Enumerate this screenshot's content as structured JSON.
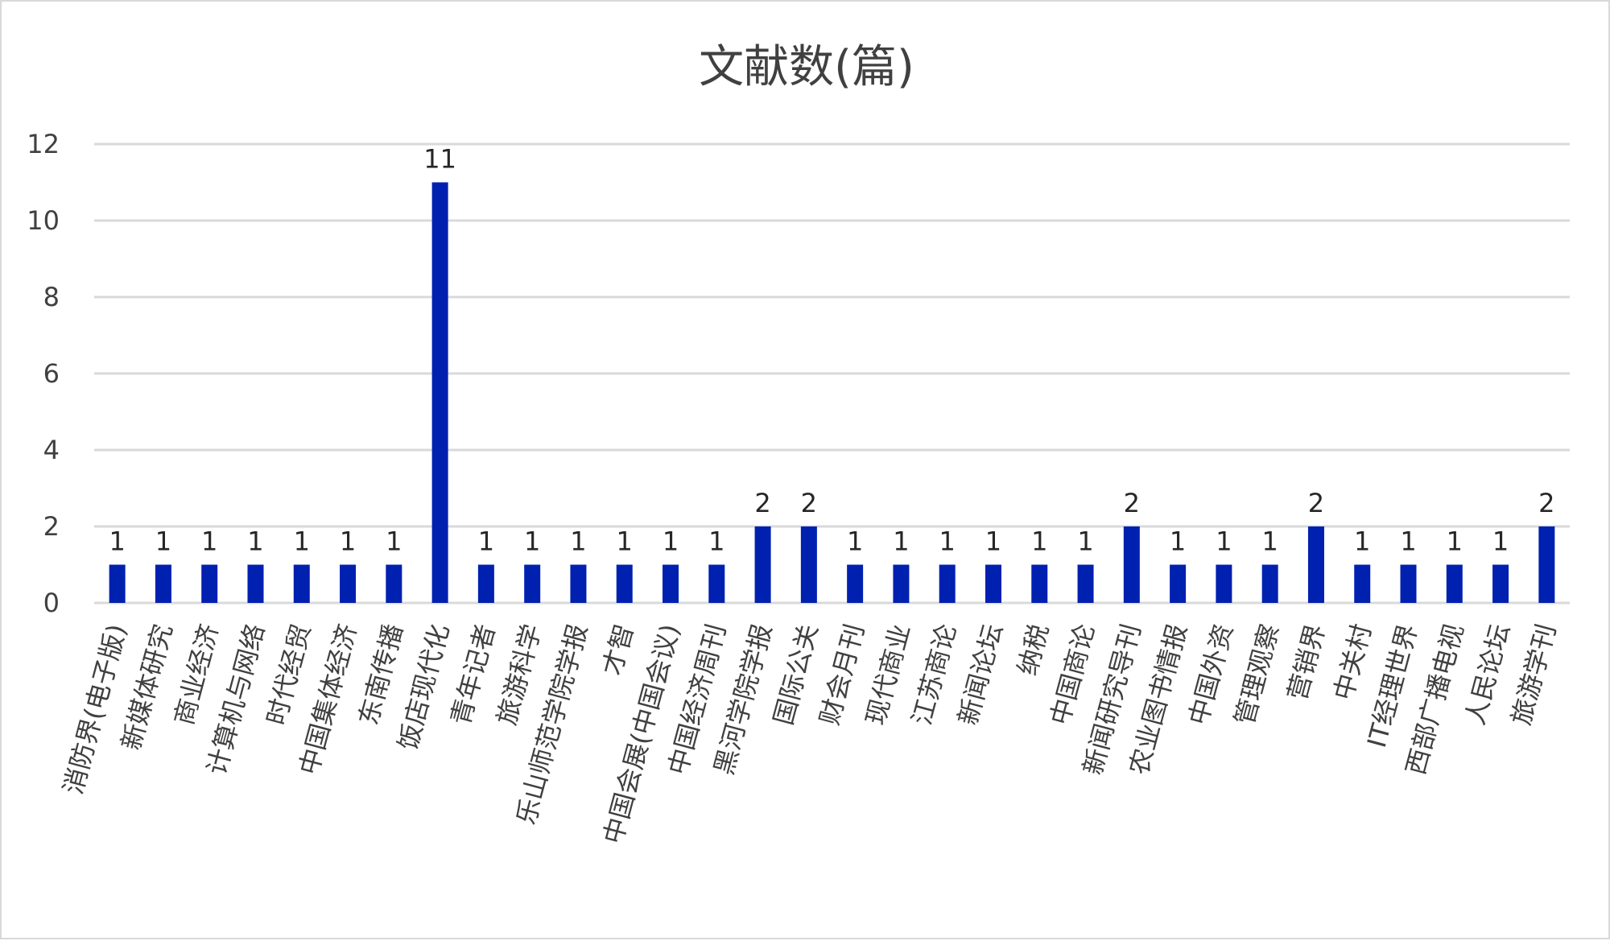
{
  "chart_data": {
    "type": "bar",
    "title": "文献数(篇)",
    "xlabel": "",
    "ylabel": "",
    "ylim": [
      0,
      12
    ],
    "yticks": [
      0,
      2,
      4,
      6,
      8,
      10,
      12
    ],
    "grid": true,
    "legend": "none",
    "bar_color": "#0020b0",
    "grid_color": "#d9d9d9",
    "categories": [
      "消防界(电子版)",
      "新媒体研究",
      "商业经济",
      "计算机与网络",
      "时代经贸",
      "中国集体经济",
      "东南传播",
      "饭店现代化",
      "青年记者",
      "旅游科学",
      "乐山师范学院学报",
      "才智",
      "中国会展(中国会议)",
      "中国经济周刊",
      "黑河学院学报",
      "国际公关",
      "财会月刊",
      "现代商业",
      "江苏商论",
      "新闻论坛",
      "纳税",
      "中国商论",
      "新闻研究导刊",
      "农业图书情报",
      "中国外资",
      "管理观察",
      "营销界",
      "中关村",
      "IT经理世界",
      "西部广播电视",
      "人民论坛",
      "旅游学刊"
    ],
    "values": [
      1,
      1,
      1,
      1,
      1,
      1,
      1,
      11,
      1,
      1,
      1,
      1,
      1,
      1,
      2,
      2,
      1,
      1,
      1,
      1,
      1,
      1,
      2,
      1,
      1,
      1,
      2,
      1,
      1,
      1,
      1,
      2
    ],
    "data_labels": [
      "1",
      "1",
      "1",
      "1",
      "1",
      "1",
      "1",
      "11",
      "1",
      "1",
      "1",
      "1",
      "1",
      "1",
      "2",
      "2",
      "1",
      "1",
      "1",
      "1",
      "1",
      "1",
      "2",
      "1",
      "1",
      "1",
      "2",
      "1",
      "1",
      "1",
      "1",
      "2"
    ]
  }
}
